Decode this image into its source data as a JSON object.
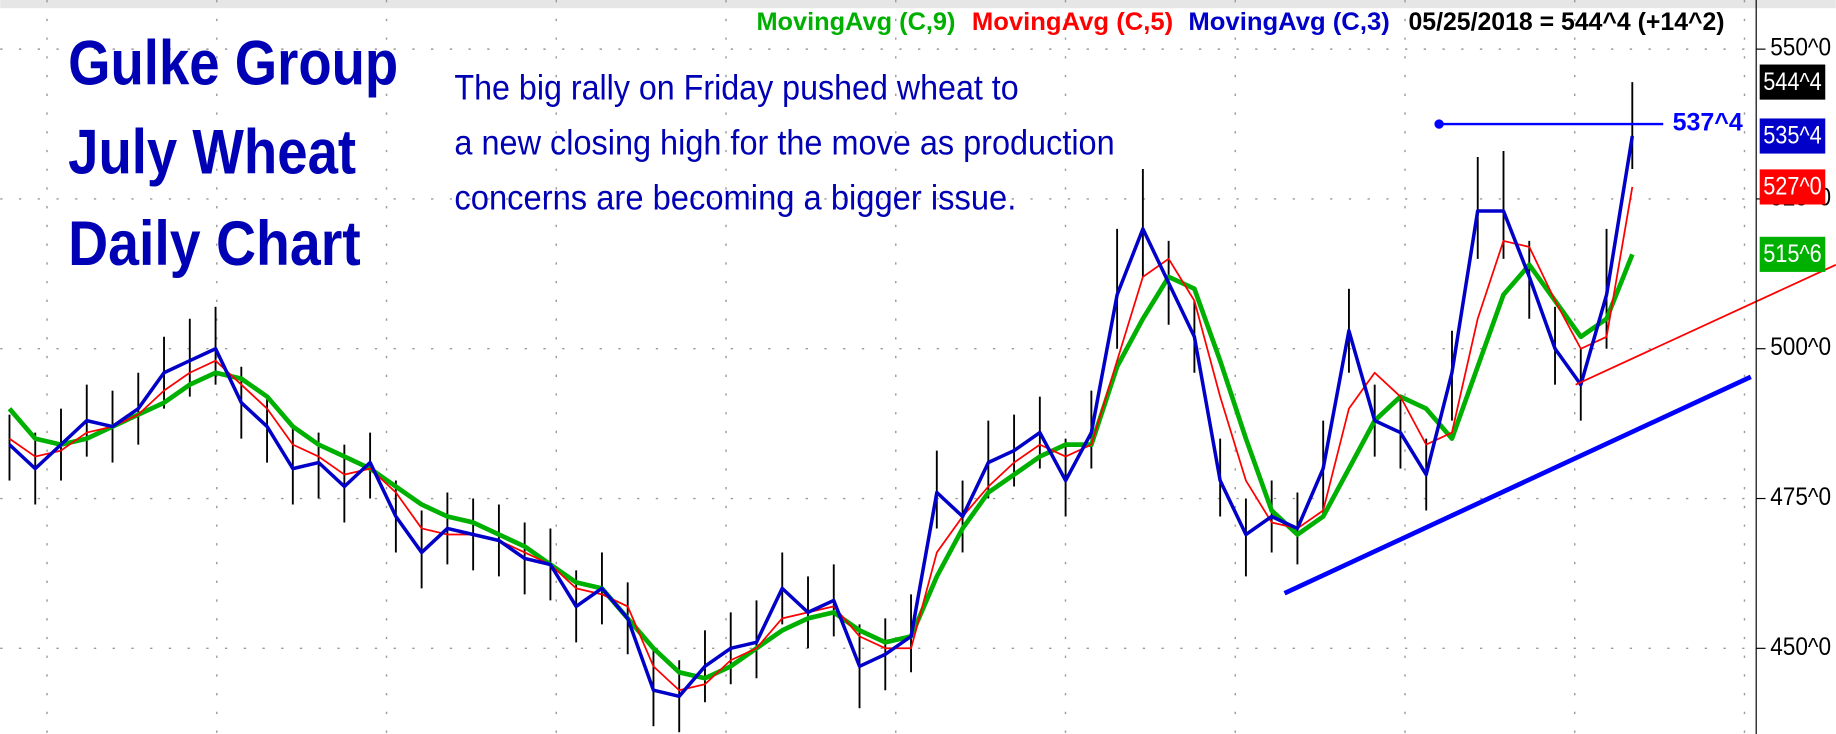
{
  "chart_data": {
    "type": "line",
    "title_lines": [
      "Gulke Group",
      "July Wheat",
      "Daily Chart"
    ],
    "annotation_lines": [
      "The big rally on Friday pushed wheat to",
      "a new closing high for the move as production",
      "concerns are becoming a bigger issue."
    ],
    "header_note": "05/25/2018 = 544^4 (+14^2)",
    "xlim": [
      -0.36,
      70.9
    ],
    "ylim": [
      435.7,
      558.2
    ],
    "yticks": [
      {
        "value": 450,
        "label": "450^0"
      },
      {
        "value": 475,
        "label": "475^0"
      },
      {
        "value": 500,
        "label": "500^0"
      },
      {
        "value": 525,
        "label": "525^0"
      },
      {
        "value": 550,
        "label": "550^0"
      }
    ],
    "grid": true,
    "price": {
      "color": "#000000",
      "last_value": 544.5,
      "last_label": "544^4",
      "highs": [
        489,
        486,
        490,
        494,
        493,
        496,
        502,
        505,
        507,
        497,
        492,
        487,
        486,
        484,
        486,
        478,
        473,
        476,
        475,
        474,
        471,
        470,
        463,
        466,
        461,
        450,
        448,
        453,
        456,
        458,
        466,
        462,
        464,
        454,
        455,
        459,
        483,
        478,
        488,
        489,
        492,
        485,
        493,
        520,
        530,
        518,
        508,
        485,
        475,
        478,
        476,
        488,
        510,
        494,
        492,
        485,
        503,
        532,
        533,
        518,
        507,
        500,
        520,
        544.5
      ],
      "lows": [
        478,
        474,
        478,
        482,
        481,
        484,
        490,
        492,
        494,
        485,
        481,
        474,
        475,
        471,
        475,
        466,
        460,
        464,
        463,
        462,
        459,
        458,
        451,
        454,
        449,
        437,
        436,
        441,
        444,
        445,
        454,
        450,
        452,
        440,
        443,
        446,
        470,
        466,
        475,
        477,
        480,
        472,
        480,
        500,
        512,
        504,
        496,
        472,
        462,
        466,
        464,
        472,
        496,
        482,
        480,
        473,
        488,
        515,
        515,
        505,
        494,
        488,
        500,
        530
      ]
    },
    "series": [
      {
        "name": "MovingAvg (C,9)",
        "color": "#00b000",
        "width": 4,
        "last_label": "515^6",
        "values": [
          490,
          485,
          484,
          485,
          487,
          489,
          491,
          494,
          496,
          495,
          492,
          487,
          484,
          482,
          480,
          477,
          474,
          472,
          471,
          469,
          467,
          464,
          461,
          460,
          455,
          450,
          446,
          445,
          447,
          450,
          453,
          455,
          456,
          453,
          451,
          452,
          462,
          470,
          476,
          479,
          482,
          484,
          484,
          497,
          505,
          512,
          510,
          498,
          485,
          473,
          469,
          472,
          480,
          488,
          492,
          490,
          485,
          497,
          509,
          514,
          508,
          502,
          505,
          515.75
        ]
      },
      {
        "name": "MovingAvg (C,5)",
        "color": "#ff0000",
        "width": 1.5,
        "last_label": "527^0",
        "values": [
          485,
          482,
          483,
          486,
          487,
          489,
          493,
          496,
          498,
          494,
          490,
          484,
          482,
          479,
          480,
          476,
          470,
          469,
          469,
          468,
          466,
          464,
          460,
          459,
          457,
          447,
          443,
          444,
          448,
          450,
          455,
          456,
          457,
          452,
          450,
          450,
          466,
          472,
          477,
          481,
          484,
          482,
          484,
          498,
          512,
          515,
          508,
          492,
          478,
          471,
          470,
          473,
          490,
          496,
          492,
          484,
          486,
          505,
          518,
          517,
          508,
          500,
          502,
          527
        ]
      },
      {
        "name": "MovingAvg (C,3)",
        "color": "#0000c8",
        "width": 3,
        "last_label": "535^4",
        "values": [
          484,
          480,
          484,
          488,
          487,
          490,
          496,
          498,
          500,
          491,
          487,
          480,
          481,
          477,
          481,
          472,
          466,
          470,
          469,
          468,
          465,
          464,
          457,
          460,
          455,
          443,
          442,
          447,
          450,
          451,
          460,
          456,
          458,
          447,
          449,
          452,
          476,
          472,
          481,
          483,
          486,
          478,
          486,
          509,
          520,
          511,
          502,
          478,
          469,
          472,
          470,
          480,
          503,
          488,
          486,
          479,
          496,
          523,
          523,
          512,
          500,
          494,
          509,
          535.5
        ]
      }
    ],
    "lines": [
      {
        "color": "#0000ff",
        "width": 4,
        "x": [
          49.5,
          67.6
        ],
        "y": [
          459.2,
          495.3
        ]
      },
      {
        "color": "#ff0000",
        "width": 1.5,
        "x": [
          60.8,
          70.9
        ],
        "y": [
          494,
          514
        ]
      },
      {
        "color": "#0000ff",
        "width": 2,
        "x": [
          55.5,
          64.2
        ],
        "y": [
          537.5,
          537.5
        ],
        "label": "537^4"
      }
    ]
  }
}
